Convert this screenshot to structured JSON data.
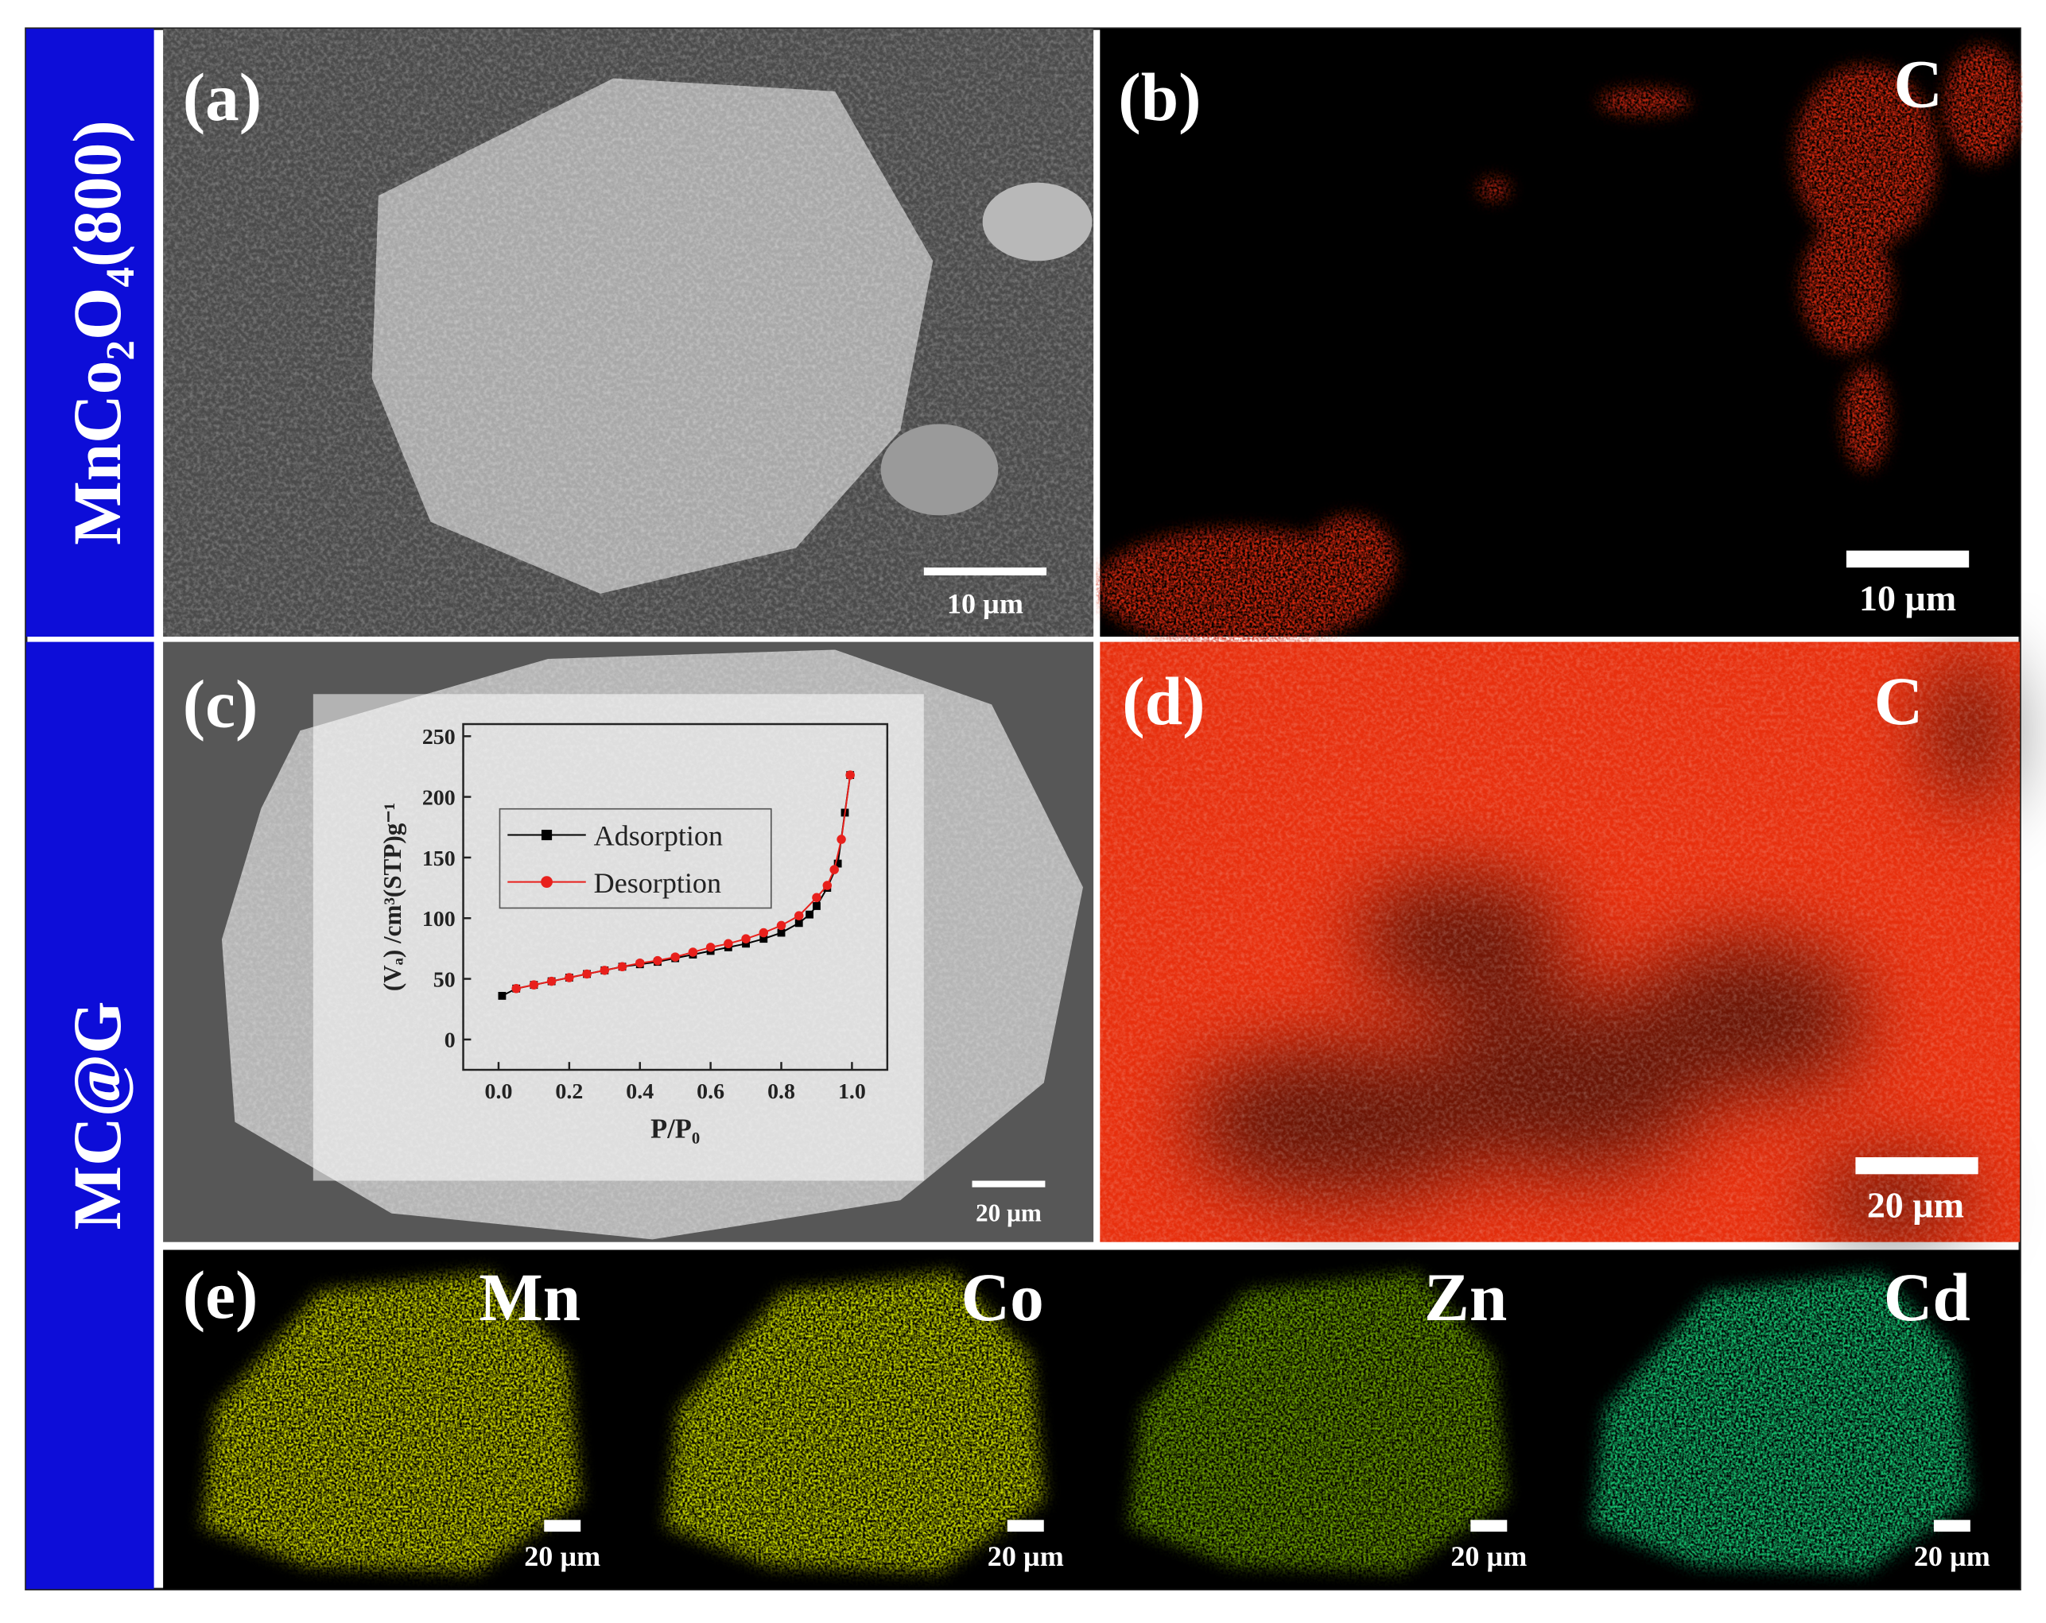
{
  "sidebar": {
    "top": "MnCo₂O₄(800)",
    "bottom": "MC@G"
  },
  "panels": {
    "a": {
      "label": "(a)",
      "scale_bar": "10 µm"
    },
    "b": {
      "label": "(b)",
      "element": "C",
      "scale_bar": "10 µm"
    },
    "c": {
      "label": "(c)",
      "scale_bar": "20 µm"
    },
    "d": {
      "label": "(d)",
      "element": "C",
      "scale_bar": "20 µm"
    },
    "e": {
      "label": "(e)",
      "maps": [
        {
          "element": "Mn",
          "scale_bar": "20 µm",
          "color": "#c8d200"
        },
        {
          "element": "Co",
          "scale_bar": "20 µm",
          "color": "#c4d400"
        },
        {
          "element": "Zn",
          "scale_bar": "20 µm",
          "color": "#86c400"
        },
        {
          "element": "Cd",
          "scale_bar": "20 µm",
          "color": "#14c070"
        }
      ]
    }
  },
  "chart_data": {
    "type": "line",
    "x_label": "P/P₀",
    "y_label": "(Vₐ) /cm³(STP)g⁻¹",
    "xlim": [
      -0.1,
      1.1
    ],
    "ylim": [
      -25,
      260
    ],
    "xticks": [
      {
        "value": 0,
        "label": "0.0"
      },
      {
        "value": 0.2,
        "label": "0.2"
      },
      {
        "value": 0.4,
        "label": "0.4"
      },
      {
        "value": 0.6,
        "label": "0.6"
      },
      {
        "value": 0.8,
        "label": "0.8"
      },
      {
        "value": 1,
        "label": "1.0"
      }
    ],
    "yticks": [
      0,
      50,
      100,
      150,
      200,
      250
    ],
    "legend": "upper left",
    "series": [
      {
        "name": "Adsorption",
        "color": "#000000",
        "x": [
          0.01,
          0.05,
          0.1,
          0.15,
          0.2,
          0.25,
          0.3,
          0.35,
          0.4,
          0.45,
          0.5,
          0.55,
          0.6,
          0.65,
          0.7,
          0.75,
          0.8,
          0.85,
          0.88,
          0.9,
          0.93,
          0.96,
          0.98,
          0.995
        ],
        "values": [
          36,
          42,
          45,
          48,
          51,
          54,
          57,
          60,
          62,
          64,
          67,
          70,
          73,
          76,
          79,
          83,
          88,
          96,
          103,
          110,
          125,
          145,
          187,
          218
        ]
      },
      {
        "name": "Desorption",
        "color": "#e8201c",
        "x": [
          0.05,
          0.1,
          0.15,
          0.2,
          0.25,
          0.3,
          0.35,
          0.4,
          0.45,
          0.5,
          0.55,
          0.6,
          0.65,
          0.7,
          0.75,
          0.8,
          0.85,
          0.9,
          0.93,
          0.95,
          0.97,
          0.995
        ],
        "values": [
          42,
          45,
          48,
          51,
          54,
          57,
          60,
          63,
          65,
          68,
          72,
          76,
          79,
          83,
          88,
          94,
          102,
          117,
          127,
          140,
          165,
          218
        ]
      }
    ]
  }
}
